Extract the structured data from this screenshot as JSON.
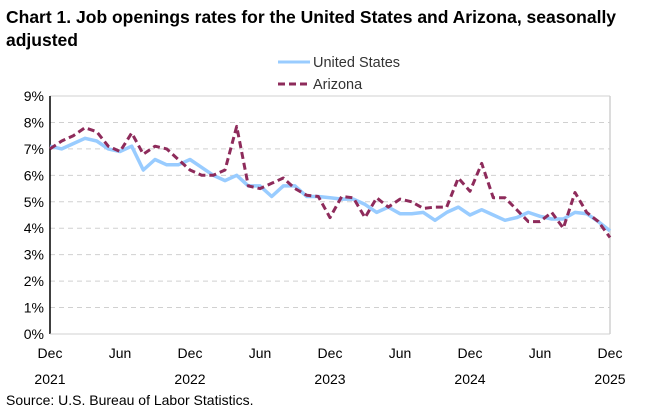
{
  "title": "Chart 1. Job openings rates for the United States and Arizona, seasonally adjusted",
  "source": "Source: U.S. Bureau of Labor Statistics.",
  "chart_data": {
    "type": "line",
    "title": "Chart 1. Job openings rates for the United States and Arizona, seasonally adjusted",
    "xlabel": "",
    "ylabel": "",
    "ylim": [
      0,
      9
    ],
    "y_ticks": [
      "0%",
      "1%",
      "2%",
      "3%",
      "4%",
      "5%",
      "6%",
      "7%",
      "8%",
      "9%"
    ],
    "x_range": [
      "Dec 2021",
      "Dec 2025"
    ],
    "x_ticks": [
      {
        "month": "Dec",
        "year": "2021"
      },
      {
        "month": "Jun",
        "year": ""
      },
      {
        "month": "Dec",
        "year": "2022"
      },
      {
        "month": "Jun",
        "year": ""
      },
      {
        "month": "Dec",
        "year": "2023"
      },
      {
        "month": "Jun",
        "year": ""
      },
      {
        "month": "Dec",
        "year": "2024"
      },
      {
        "month": "Jun",
        "year": ""
      },
      {
        "month": "Dec",
        "year": "2025"
      }
    ],
    "grid": true,
    "legend_position": "top-center",
    "series": [
      {
        "name": "United States",
        "color": "#99CCFF",
        "style": "solid",
        "values": [
          7.1,
          7.0,
          7.2,
          7.4,
          7.3,
          7.0,
          6.9,
          7.1,
          6.2,
          6.6,
          6.4,
          6.4,
          6.6,
          6.3,
          6.0,
          5.8,
          6.0,
          5.6,
          5.6,
          5.2,
          5.6,
          5.6,
          5.2,
          5.2,
          5.15,
          5.1,
          5.1,
          4.9,
          4.6,
          4.8,
          4.55,
          4.55,
          4.6,
          4.3,
          4.6,
          4.8,
          4.5,
          4.7,
          4.5,
          4.3,
          4.4,
          4.6,
          4.45,
          4.35,
          4.35,
          4.6,
          4.55,
          4.25,
          3.9
        ]
      },
      {
        "name": "Arizona",
        "color": "#8E2B5B",
        "style": "dashed",
        "values": [
          7.0,
          7.3,
          7.5,
          7.8,
          7.65,
          7.1,
          6.9,
          7.6,
          6.8,
          7.1,
          7.0,
          6.6,
          6.2,
          6.0,
          6.0,
          6.2,
          7.85,
          5.6,
          5.5,
          5.7,
          5.9,
          5.5,
          5.25,
          5.2,
          4.4,
          5.2,
          5.15,
          4.4,
          5.15,
          4.8,
          5.1,
          5.0,
          4.75,
          4.8,
          4.8,
          5.9,
          5.4,
          6.45,
          5.15,
          5.15,
          4.7,
          4.25,
          4.25,
          4.6,
          4.0,
          5.35,
          4.6,
          4.25,
          3.65
        ]
      }
    ]
  }
}
